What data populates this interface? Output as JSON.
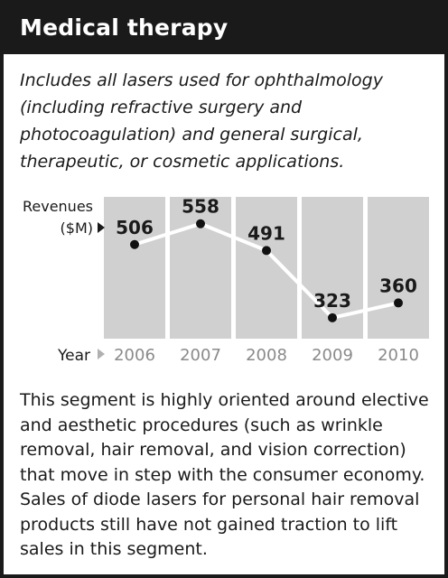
{
  "title": "Medical therapy",
  "intro": "Includes all lasers used for ophthalmology (including refractive surgery and photocoagulation) and general surgical, therapeutic, or cosmetic applications.",
  "body": "This segment is highly oriented around elective and aesthetic procedures (such as wrinkle removal, hair removal, and vision correction) that move in step with the consumer economy. Sales of diode lasers for personal hair removal products still have not gained traction to lift sales in this segment.",
  "colors": {
    "header_bg": "#1a1a1a",
    "panel": "#d0d0d0",
    "line": "#ffffff",
    "marker": "#111111",
    "tick": "#8a8a8a"
  },
  "chart_data": {
    "type": "line",
    "ylabel_line1": "Revenues",
    "ylabel_line2": "($M)",
    "xlabel": "Year",
    "categories": [
      "2006",
      "2007",
      "2008",
      "2009",
      "2010"
    ],
    "values": [
      506,
      558,
      491,
      323,
      360
    ],
    "ylim": [
      300,
      580
    ],
    "grid": false,
    "data_labels": true
  }
}
